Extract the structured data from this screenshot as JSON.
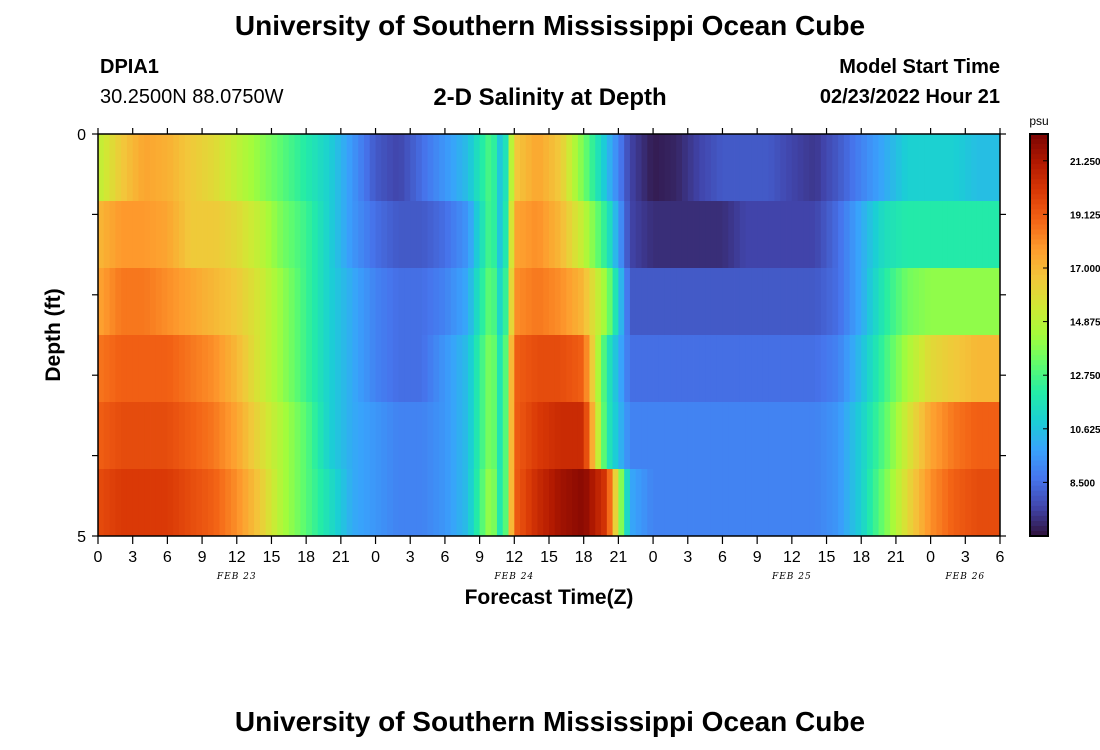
{
  "page": {
    "title": "University of Southern Mississippi Ocean Cube",
    "bottom_title": "University of Southern Mississippi Ocean Cube",
    "station_id": "DPIA1",
    "station_coords": "30.2500N  88.0750W",
    "model_start_label": "Model Start Time",
    "model_start_value": "02/23/2022 Hour 21"
  },
  "colors": {
    "colormap": [
      "#30123b",
      "#4145ab",
      "#4675ed",
      "#39a2fc",
      "#1bcfd4",
      "#24eca6",
      "#61fc6c",
      "#a4fc3b",
      "#d1e834",
      "#f3c63a",
      "#fe9b2d",
      "#f36315",
      "#d93806",
      "#b11901",
      "#7a0403"
    ]
  },
  "chart_data": {
    "type": "heatmap",
    "title": "2-D Salinity at Depth",
    "xlabel": "Forecast Time(Z)",
    "ylabel": "Depth (ft)",
    "x_tick_labels": [
      "0",
      "3",
      "6",
      "9",
      "12",
      "15",
      "18",
      "21",
      "0",
      "3",
      "6",
      "9",
      "12",
      "15",
      "18",
      "21",
      "0",
      "3",
      "6",
      "9",
      "12",
      "15",
      "18",
      "21",
      "0",
      "3",
      "6"
    ],
    "day_labels": [
      {
        "label": "FEB 23",
        "hour": 12
      },
      {
        "label": "FEB 24",
        "hour": 36
      },
      {
        "label": "FEB 25",
        "hour": 60
      },
      {
        "label": "FEB 26",
        "hour": 75
      }
    ],
    "x_range_hours": [
      0,
      78
    ],
    "y_tick_labels": [
      "0",
      "5"
    ],
    "y_range_ft": [
      0,
      5
    ],
    "depth_levels_ft": [
      0,
      1,
      2,
      3,
      4,
      5
    ],
    "colorbar": {
      "unit": "psu",
      "min": 6.375,
      "max": 22.3125,
      "tick_values": [
        21.25,
        19.125,
        17.0,
        14.875,
        12.75,
        10.625,
        8.5
      ],
      "tick_labels": [
        "21.250",
        "19.125",
        "17.000",
        "14.875",
        "12.750",
        "10.625",
        "8.500"
      ]
    },
    "value_time_hours": [
      0,
      2,
      4,
      6,
      8,
      10,
      12,
      14,
      16,
      18,
      20,
      22,
      24,
      26,
      28,
      30,
      32,
      34,
      35,
      36,
      38,
      40,
      42,
      44,
      46,
      48,
      50,
      52,
      54,
      56,
      58,
      60,
      62,
      64,
      66,
      68,
      70,
      72,
      74,
      76,
      78
    ],
    "values_psu": [
      [
        15.0,
        16.5,
        17.5,
        17.2,
        16.5,
        16.0,
        15.0,
        14.0,
        13.0,
        12.0,
        11.0,
        9.5,
        8.0,
        7.5,
        8.5,
        9.5,
        10.5,
        13.0,
        10.0,
        16.5,
        17.5,
        16.5,
        13.5,
        10.5,
        7.5,
        6.6,
        6.8,
        7.5,
        8.0,
        8.0,
        8.0,
        7.5,
        7.2,
        8.0,
        9.0,
        10.0,
        11.0,
        11.0,
        11.0,
        10.5,
        10.5
      ],
      [
        17.0,
        17.8,
        17.8,
        17.5,
        16.5,
        16.5,
        16.0,
        15.0,
        13.5,
        12.5,
        11.0,
        9.5,
        8.5,
        8.0,
        8.0,
        8.5,
        9.5,
        13.0,
        10.0,
        17.5,
        18.0,
        17.0,
        15.0,
        12.0,
        7.5,
        7.0,
        7.0,
        7.0,
        7.0,
        7.5,
        7.5,
        7.5,
        7.5,
        8.5,
        10.0,
        11.5,
        12.0,
        12.0,
        12.0,
        12.0,
        12.0
      ],
      [
        17.5,
        18.5,
        18.5,
        18.0,
        17.5,
        17.0,
        16.5,
        15.5,
        14.0,
        12.5,
        11.0,
        10.0,
        9.0,
        8.5,
        8.5,
        9.0,
        10.0,
        13.5,
        10.5,
        18.0,
        18.5,
        18.0,
        17.0,
        14.0,
        8.0,
        8.0,
        8.0,
        8.0,
        8.0,
        8.0,
        8.0,
        8.0,
        8.0,
        8.5,
        10.0,
        12.0,
        13.5,
        14.0,
        14.0,
        14.0,
        14.0
      ],
      [
        18.5,
        19.0,
        19.0,
        19.0,
        18.5,
        18.0,
        17.0,
        15.5,
        14.0,
        12.5,
        11.0,
        10.0,
        9.0,
        8.5,
        8.5,
        9.5,
        10.5,
        14.0,
        11.0,
        19.0,
        19.5,
        19.5,
        19.0,
        12.0,
        8.5,
        8.5,
        8.5,
        8.5,
        8.5,
        8.5,
        8.5,
        8.5,
        8.5,
        9.0,
        10.5,
        12.5,
        14.5,
        16.0,
        16.5,
        17.0,
        17.0
      ],
      [
        19.0,
        19.5,
        19.5,
        19.5,
        19.0,
        18.5,
        17.5,
        16.0,
        14.5,
        13.0,
        11.0,
        10.0,
        9.5,
        9.0,
        9.0,
        9.5,
        10.5,
        14.0,
        11.0,
        19.0,
        20.0,
        20.5,
        20.5,
        12.0,
        9.0,
        9.0,
        9.0,
        9.0,
        9.0,
        9.0,
        9.0,
        9.0,
        9.0,
        9.5,
        11.0,
        13.0,
        15.5,
        17.5,
        18.5,
        19.0,
        19.0
      ],
      [
        19.5,
        20.0,
        20.0,
        20.0,
        19.5,
        19.0,
        18.0,
        16.5,
        14.5,
        13.0,
        11.5,
        10.0,
        9.5,
        9.0,
        9.0,
        9.5,
        10.5,
        14.5,
        11.0,
        19.0,
        20.5,
        21.5,
        22.0,
        20.0,
        10.0,
        9.0,
        9.0,
        9.0,
        9.0,
        9.0,
        9.0,
        9.0,
        9.0,
        9.5,
        11.0,
        13.5,
        16.0,
        18.0,
        19.0,
        19.5,
        19.5
      ]
    ]
  }
}
